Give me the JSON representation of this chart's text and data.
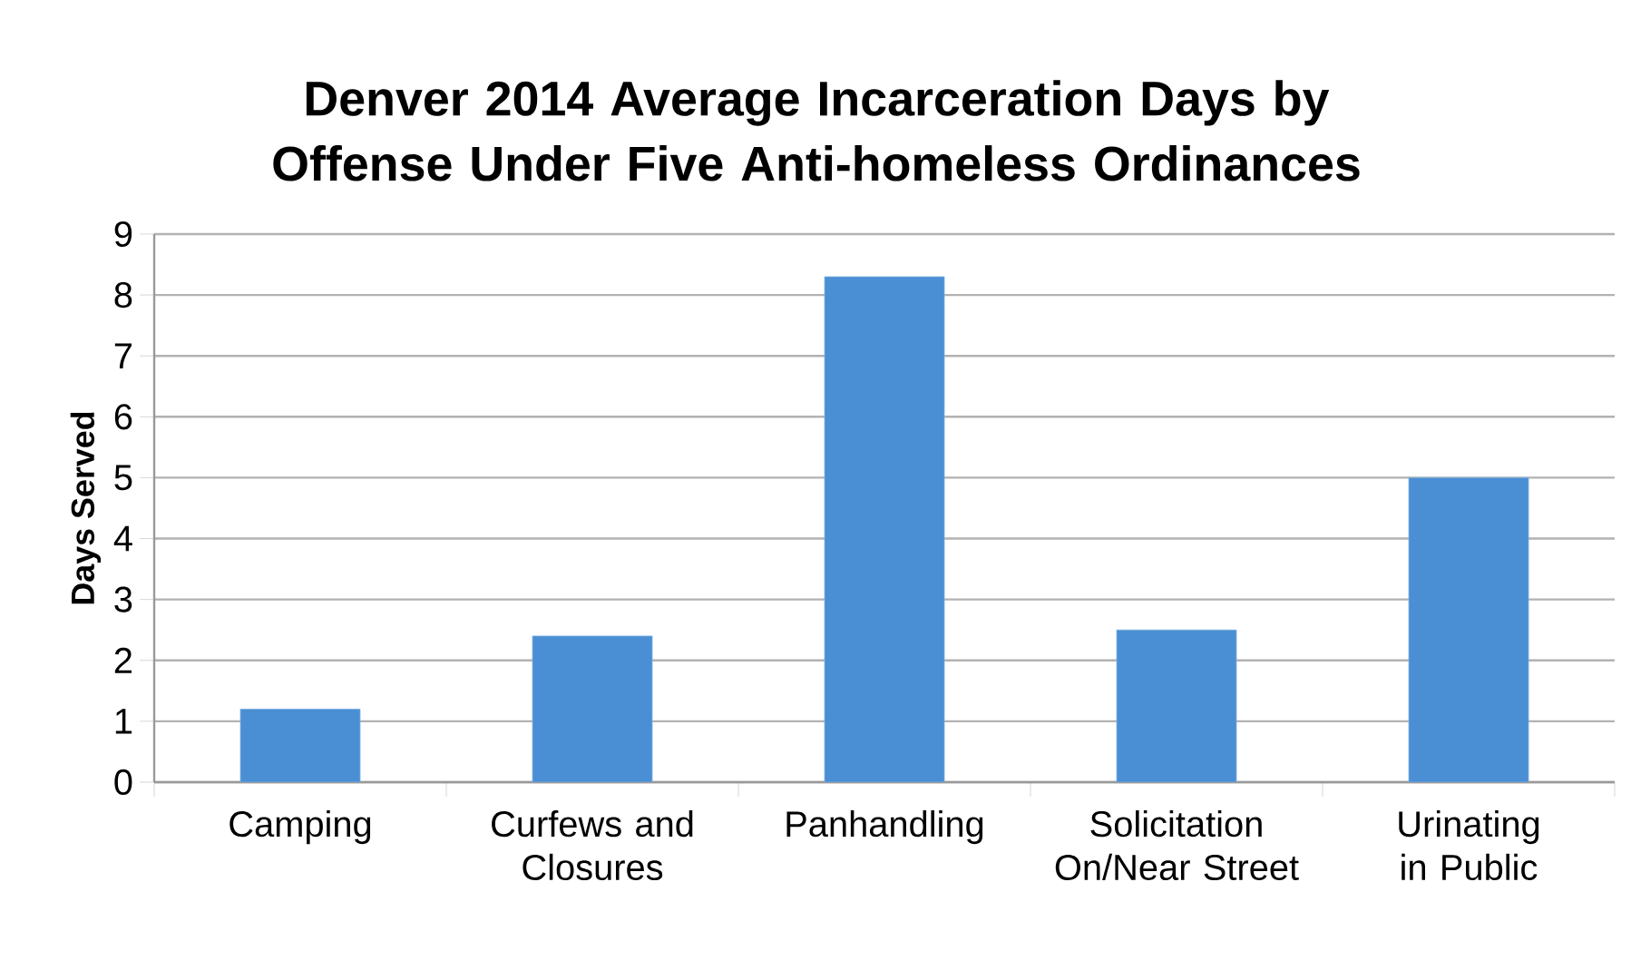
{
  "chart_data": {
    "type": "bar",
    "title": "Denver 2014 Average Incarceration Days by Offense Under Five Anti-homeless Ordinances",
    "ylabel": "Days Served",
    "categories": [
      "Camping",
      "Curfews and Closures",
      "Panhandling",
      "Solicitation On/Near Street",
      "Urinating in Public"
    ],
    "values": [
      1.2,
      2.4,
      8.3,
      2.5,
      5.0
    ],
    "color": "#4a8fd4",
    "ylim": [
      0,
      9
    ],
    "yticks": [
      0,
      1,
      2,
      3,
      4,
      5,
      6,
      7,
      8,
      9
    ],
    "grid": "y"
  }
}
